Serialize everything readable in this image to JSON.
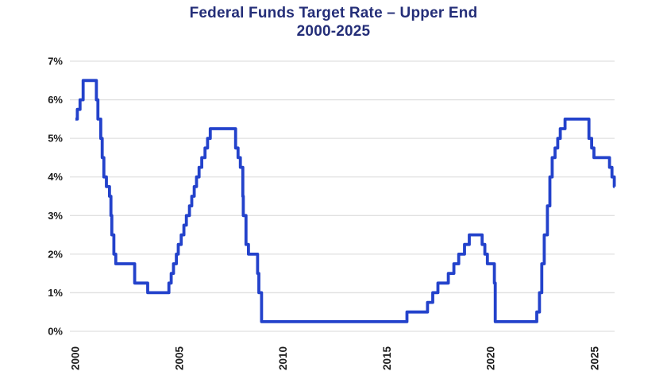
{
  "page": {
    "background": "#ffffff"
  },
  "chart_data": {
    "type": "line",
    "step_interpolation": true,
    "title": "Federal Funds Target Rate – Upper End",
    "subtitle": "2000-2025",
    "xlabel": "",
    "ylabel": "",
    "x_ticks": [
      2000,
      2005,
      2010,
      2015,
      2020,
      2025
    ],
    "y_ticks": [
      "0%",
      "1%",
      "2%",
      "3%",
      "4%",
      "5%",
      "6%",
      "7%"
    ],
    "xlim": [
      2000,
      2026
    ],
    "ylim": [
      0,
      7
    ],
    "grid": "horizontal",
    "legend": "none",
    "colors": {
      "line": "#2342cb",
      "title": "#242e78",
      "axis_text": "#1c1c1c",
      "grid": "#e0e0e0"
    },
    "series": [
      {
        "name": "Federal funds target rate - upper end",
        "unit": "%",
        "points": [
          [
            2000.0,
            5.5
          ],
          [
            2000.09,
            5.75
          ],
          [
            2000.22,
            6.0
          ],
          [
            2000.37,
            6.5
          ],
          [
            2001.01,
            6.0
          ],
          [
            2001.08,
            5.5
          ],
          [
            2001.22,
            5.0
          ],
          [
            2001.29,
            4.5
          ],
          [
            2001.37,
            4.0
          ],
          [
            2001.49,
            3.75
          ],
          [
            2001.64,
            3.5
          ],
          [
            2001.71,
            3.0
          ],
          [
            2001.75,
            2.5
          ],
          [
            2001.85,
            2.0
          ],
          [
            2001.94,
            1.75
          ],
          [
            2002.85,
            1.25
          ],
          [
            2003.48,
            1.0
          ],
          [
            2004.5,
            1.25
          ],
          [
            2004.61,
            1.5
          ],
          [
            2004.72,
            1.75
          ],
          [
            2004.86,
            2.0
          ],
          [
            2004.95,
            2.25
          ],
          [
            2005.09,
            2.5
          ],
          [
            2005.22,
            2.75
          ],
          [
            2005.34,
            3.0
          ],
          [
            2005.49,
            3.25
          ],
          [
            2005.6,
            3.5
          ],
          [
            2005.72,
            3.75
          ],
          [
            2005.83,
            4.0
          ],
          [
            2005.95,
            4.25
          ],
          [
            2006.08,
            4.5
          ],
          [
            2006.24,
            4.75
          ],
          [
            2006.36,
            5.0
          ],
          [
            2006.49,
            5.25
          ],
          [
            2007.71,
            4.75
          ],
          [
            2007.83,
            4.5
          ],
          [
            2007.94,
            4.25
          ],
          [
            2008.06,
            3.5
          ],
          [
            2008.08,
            3.0
          ],
          [
            2008.21,
            2.25
          ],
          [
            2008.33,
            2.0
          ],
          [
            2008.77,
            1.5
          ],
          [
            2008.83,
            1.0
          ],
          [
            2008.96,
            0.25
          ],
          [
            2015.96,
            0.5
          ],
          [
            2016.95,
            0.75
          ],
          [
            2017.2,
            1.0
          ],
          [
            2017.45,
            1.25
          ],
          [
            2017.95,
            1.5
          ],
          [
            2018.22,
            1.75
          ],
          [
            2018.45,
            2.0
          ],
          [
            2018.73,
            2.25
          ],
          [
            2018.96,
            2.5
          ],
          [
            2019.58,
            2.25
          ],
          [
            2019.71,
            2.0
          ],
          [
            2019.83,
            1.75
          ],
          [
            2020.17,
            1.25
          ],
          [
            2020.21,
            0.25
          ],
          [
            2022.21,
            0.5
          ],
          [
            2022.34,
            1.0
          ],
          [
            2022.45,
            1.75
          ],
          [
            2022.57,
            2.5
          ],
          [
            2022.72,
            3.25
          ],
          [
            2022.84,
            4.0
          ],
          [
            2022.95,
            4.5
          ],
          [
            2023.09,
            4.75
          ],
          [
            2023.22,
            5.0
          ],
          [
            2023.34,
            5.25
          ],
          [
            2023.57,
            5.5
          ],
          [
            2024.72,
            5.0
          ],
          [
            2024.85,
            4.75
          ],
          [
            2024.96,
            4.5
          ],
          [
            2025.71,
            4.25
          ],
          [
            2025.83,
            4.0
          ],
          [
            2025.94,
            3.75
          ],
          [
            2026.0,
            3.75
          ]
        ]
      }
    ]
  }
}
